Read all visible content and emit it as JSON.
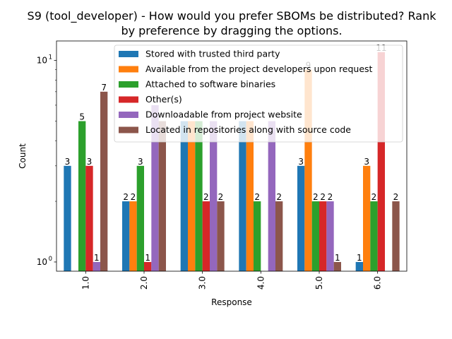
{
  "chart_data": {
    "type": "bar",
    "title_line1": "S9 (tool_developer) - How would you prefer SBOMs be distributed? Rank",
    "title_line2": "by preference by dragging the options.",
    "xlabel": "Response",
    "ylabel": "Count",
    "yscale": "log",
    "ylim": [
      0.9,
      12.5
    ],
    "ytick_labels": [
      {
        "value": 1,
        "base": "10",
        "exp": "0"
      },
      {
        "value": 10,
        "base": "10",
        "exp": "1"
      }
    ],
    "categories": [
      "1.0",
      "2.0",
      "3.0",
      "4.0",
      "5.0",
      "6.0"
    ],
    "legend_position": "upper right",
    "series": [
      {
        "name": "Stored with trusted third party",
        "color": "#1f77b4",
        "values": [
          3,
          2,
          5,
          5,
          3,
          1
        ],
        "labels": [
          "3",
          "2",
          "",
          "",
          "3",
          "1"
        ]
      },
      {
        "name": "Available from the project developers upon request",
        "color": "#ff7f0e",
        "values": [
          null,
          2,
          5,
          5,
          9,
          3
        ],
        "labels": [
          "",
          "2",
          "",
          "",
          "9",
          "3"
        ]
      },
      {
        "name": "Attached to software binaries",
        "color": "#2ca02c",
        "values": [
          5,
          3,
          5,
          2,
          2,
          2
        ],
        "labels": [
          "5",
          "3",
          "",
          "2",
          "2",
          "2"
        ]
      },
      {
        "name": "Other(s)",
        "color": "#d62728",
        "values": [
          3,
          1,
          2,
          null,
          2,
          11
        ],
        "labels": [
          "3",
          "1",
          "2",
          "",
          "2",
          "11"
        ]
      },
      {
        "name": "Downloadable from project website",
        "color": "#9467bd",
        "values": [
          1,
          6,
          5,
          5,
          2,
          null
        ],
        "labels": [
          "1",
          "",
          "",
          "",
          "2",
          ""
        ]
      },
      {
        "name": "Located in repositories along with source code",
        "color": "#8c564b",
        "values": [
          7,
          5,
          2,
          2,
          1,
          2
        ],
        "labels": [
          "7",
          "",
          "2",
          "2",
          "1",
          "2"
        ]
      }
    ]
  }
}
